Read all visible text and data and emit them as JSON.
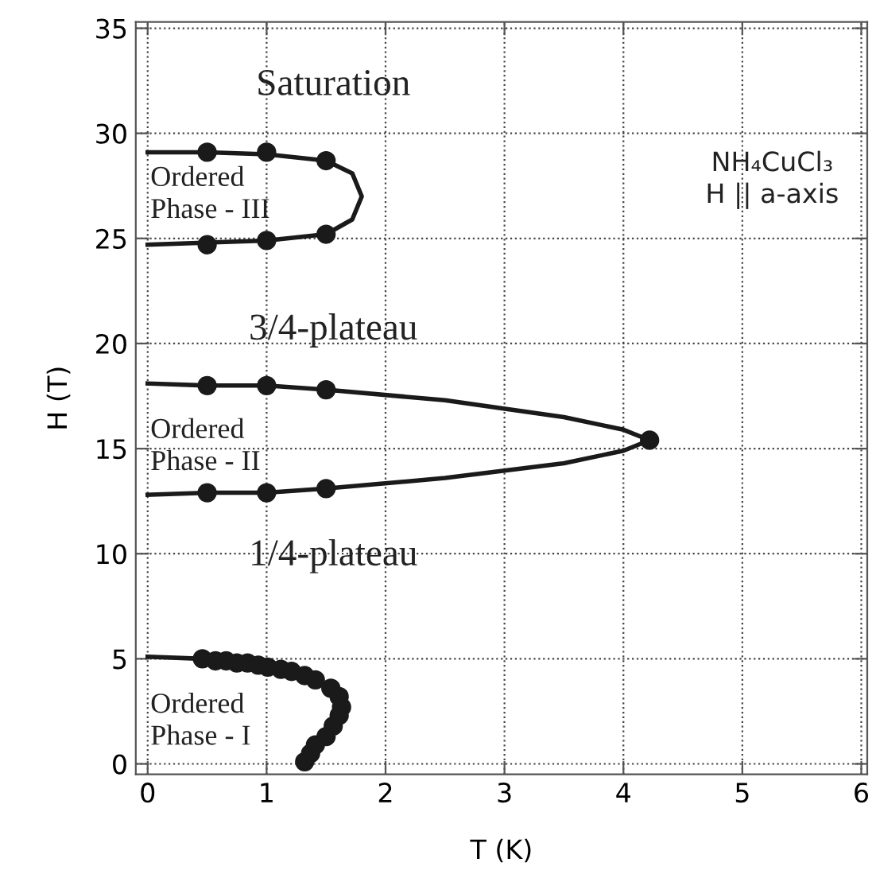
{
  "chart_data": {
    "type": "scatter",
    "xlabel": "T (K)",
    "ylabel": "H (T)",
    "xlim": [
      -0.1,
      6.05
    ],
    "ylim": [
      -0.5,
      35.3
    ],
    "xticks": [
      0,
      1,
      2,
      3,
      4,
      5,
      6
    ],
    "yticks": [
      0,
      5,
      10,
      15,
      20,
      25,
      30,
      35
    ],
    "grid": true,
    "marker": "circle",
    "series": [
      {
        "type": "line",
        "color": "#1a1a1a",
        "line_style": "solid",
        "marker": "none",
        "x": [
          0,
          0.5,
          1.0,
          1.5,
          1.72,
          1.8,
          1.72,
          1.5,
          1.0,
          0.5,
          0
        ],
        "values": [
          29.1,
          29.1,
          29.0,
          28.7,
          28.1,
          27.0,
          25.9,
          25.2,
          24.9,
          24.8,
          24.7
        ]
      },
      {
        "type": "line",
        "color": "#1a1a1a",
        "line_style": "solid",
        "marker": "none",
        "x": [
          0,
          0.5,
          1.0,
          1.5,
          2.5,
          3.5,
          4.0,
          4.22,
          4.0,
          3.5,
          2.5,
          1.5,
          1.0,
          0.5,
          0
        ],
        "values": [
          18.1,
          18.0,
          18.0,
          17.8,
          17.3,
          16.5,
          15.9,
          15.4,
          14.9,
          14.3,
          13.6,
          13.1,
          12.9,
          12.9,
          12.8
        ]
      },
      {
        "type": "line",
        "color": "#1a1a1a",
        "line_style": "solid",
        "marker": "none",
        "x": [
          0,
          0.46,
          0.57,
          0.66,
          0.75,
          0.84,
          0.93,
          1.01,
          1.12,
          1.21,
          1.32,
          1.41,
          1.54,
          1.61,
          1.63,
          1.61,
          1.56,
          1.5,
          1.41,
          1.37,
          1.32
        ],
        "values": [
          5.1,
          5.0,
          4.9,
          4.9,
          4.8,
          4.8,
          4.7,
          4.6,
          4.5,
          4.4,
          4.2,
          4.0,
          3.6,
          3.2,
          2.7,
          2.3,
          1.8,
          1.3,
          0.9,
          0.5,
          0.1
        ]
      },
      {
        "color": "#1a1a1a",
        "x": [
          0.5,
          1.0,
          1.5,
          0.5,
          1.0,
          1.5
        ],
        "values": [
          29.1,
          29.1,
          28.7,
          24.7,
          24.9,
          25.2
        ]
      },
      {
        "color": "#1a1a1a",
        "x": [
          0.5,
          1.0,
          1.5,
          4.22,
          1.5,
          1.0,
          0.5
        ],
        "values": [
          18.0,
          18.0,
          17.8,
          15.4,
          13.1,
          12.9,
          12.9
        ]
      },
      {
        "color": "#1a1a1a",
        "x": [
          0.46,
          0.57,
          0.66,
          0.75,
          0.84,
          0.93,
          1.01,
          1.12,
          1.21,
          1.32,
          1.41,
          1.54,
          1.61,
          1.63,
          1.61,
          1.56,
          1.5,
          1.41,
          1.37,
          1.32
        ],
        "values": [
          5.0,
          4.9,
          4.9,
          4.8,
          4.8,
          4.7,
          4.6,
          4.5,
          4.4,
          4.2,
          4.0,
          3.6,
          3.2,
          2.7,
          2.3,
          1.8,
          1.3,
          0.9,
          0.5,
          0.1
        ]
      }
    ],
    "annotations": [
      "Saturation",
      "Ordered\nPhase - III",
      "3/4-plateau",
      "Ordered\nPhase - II",
      "1/4-plateau",
      "Ordered\nPhase - I",
      "NH₄CuCl₃\nH || a-axis"
    ]
  }
}
